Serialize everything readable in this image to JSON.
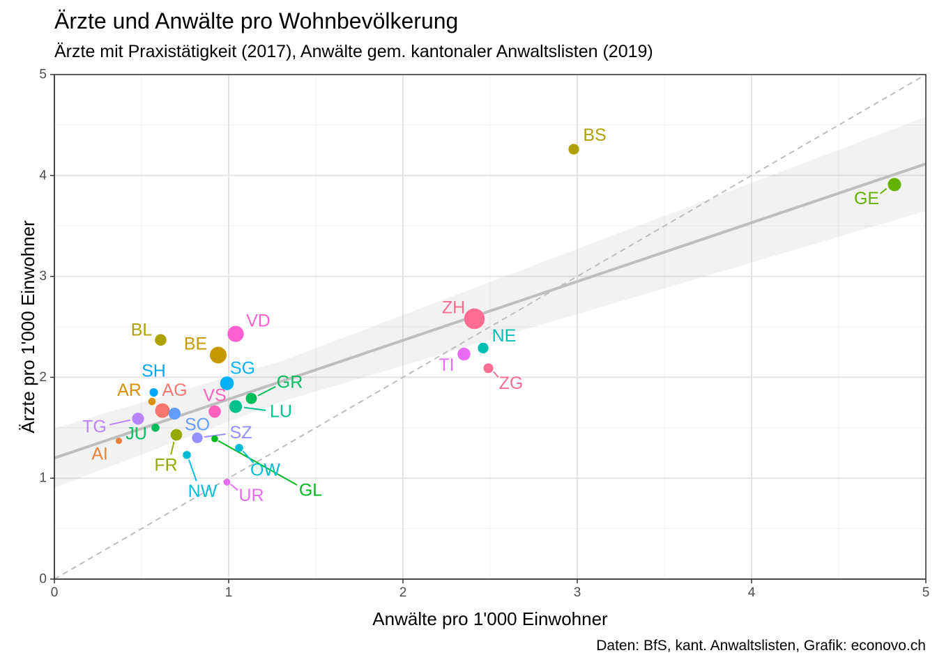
{
  "chart_data": {
    "type": "scatter",
    "title": "Ärzte und Anwälte pro Wohnbevölkerung",
    "subtitle": "Ärzte mit Praxistätigkeit (2017), Anwälte gem. kantonaler Anwaltslisten (2019)",
    "xlabel": "Anwälte pro 1'000 Einwohner",
    "ylabel": "Ärzte pro 1'000 Einwohner",
    "caption": "Daten: BfS, kant. Anwaltslisten, Grafik: econovo.ch",
    "xlim": [
      0,
      5
    ],
    "ylim": [
      0,
      5
    ],
    "x_ticks": [
      "0",
      "1",
      "2",
      "3",
      "4",
      "5"
    ],
    "y_ticks": [
      "0",
      "1",
      "2",
      "3",
      "4",
      "5"
    ],
    "grid": true,
    "reference_line": {
      "style": "dashed",
      "slope": 1,
      "intercept": 0
    },
    "regression": {
      "intercept": 1.2,
      "slope": 0.583,
      "ci_band": true
    },
    "points": [
      {
        "label": "AG",
        "x": 0.62,
        "y": 1.67,
        "size": 4.8,
        "color": "#F8766D",
        "lx": 0.69,
        "ly": 1.87
      },
      {
        "label": "AI",
        "x": 0.37,
        "y": 1.37,
        "size": 1.0,
        "color": "#EC8239",
        "lx": 0.26,
        "ly": 1.24
      },
      {
        "label": "AR",
        "x": 0.56,
        "y": 1.76,
        "size": 1.5,
        "color": "#DB8E00",
        "lx": 0.43,
        "ly": 1.87
      },
      {
        "label": "BE",
        "x": 0.94,
        "y": 2.22,
        "size": 5.8,
        "color": "#C79800",
        "lx": 0.81,
        "ly": 2.33
      },
      {
        "label": "BL",
        "x": 0.61,
        "y": 2.37,
        "size": 3.4,
        "color": "#AFA100",
        "lx": 0.5,
        "ly": 2.47
      },
      {
        "label": "BS",
        "x": 2.98,
        "y": 4.26,
        "size": 3.0,
        "color": "#AFA100",
        "lx": 3.1,
        "ly": 4.4
      },
      {
        "label": "FR",
        "x": 0.7,
        "y": 1.43,
        "size": 3.4,
        "color": "#94AA00",
        "lx": 0.64,
        "ly": 1.13
      },
      {
        "label": "GE",
        "x": 4.82,
        "y": 3.91,
        "size": 4.2,
        "color": "#64B200",
        "lx": 4.66,
        "ly": 3.77
      },
      {
        "label": "GL",
        "x": 0.92,
        "y": 1.39,
        "size": 1.2,
        "color": "#00B81F",
        "lx": 1.47,
        "ly": 0.88
      },
      {
        "label": "GR",
        "x": 1.13,
        "y": 1.79,
        "size": 3.2,
        "color": "#00BD5C",
        "lx": 1.35,
        "ly": 1.95
      },
      {
        "label": "JU",
        "x": 0.58,
        "y": 1.5,
        "size": 1.8,
        "color": "#00BD5C",
        "lx": 0.47,
        "ly": 1.44
      },
      {
        "label": "LU",
        "x": 1.04,
        "y": 1.71,
        "size": 4.0,
        "color": "#00C08D",
        "lx": 1.3,
        "ly": 1.66
      },
      {
        "label": "NE",
        "x": 2.46,
        "y": 2.29,
        "size": 3.0,
        "color": "#00BFB2",
        "lx": 2.58,
        "ly": 2.41
      },
      {
        "label": "NW",
        "x": 0.76,
        "y": 1.23,
        "size": 1.8,
        "color": "#00BCD6",
        "lx": 0.85,
        "ly": 0.87
      },
      {
        "label": "OW",
        "x": 1.06,
        "y": 1.3,
        "size": 1.8,
        "color": "#00BCD6",
        "lx": 1.21,
        "ly": 1.08
      },
      {
        "label": "SG",
        "x": 0.99,
        "y": 1.94,
        "size": 4.4,
        "color": "#00B0F6",
        "lx": 1.08,
        "ly": 2.09
      },
      {
        "label": "SH",
        "x": 0.57,
        "y": 1.85,
        "size": 2.0,
        "color": "#00A7FF",
        "lx": 0.57,
        "ly": 2.06
      },
      {
        "label": "SO",
        "x": 0.69,
        "y": 1.64,
        "size": 3.6,
        "color": "#619CFF",
        "lx": 0.82,
        "ly": 1.53
      },
      {
        "label": "SZ",
        "x": 0.82,
        "y": 1.4,
        "size": 3.0,
        "color": "#9590FF",
        "lx": 1.07,
        "ly": 1.45
      },
      {
        "label": "TG",
        "x": 0.48,
        "y": 1.59,
        "size": 3.6,
        "color": "#B983FF",
        "lx": 0.23,
        "ly": 1.51
      },
      {
        "label": "TI",
        "x": 2.35,
        "y": 2.23,
        "size": 4.0,
        "color": "#E76BF3",
        "lx": 2.25,
        "ly": 2.12
      },
      {
        "label": "UR",
        "x": 0.99,
        "y": 0.96,
        "size": 1.2,
        "color": "#E76BF3",
        "lx": 1.13,
        "ly": 0.83
      },
      {
        "label": "VD",
        "x": 1.04,
        "y": 2.43,
        "size": 5.6,
        "color": "#FD61D1",
        "lx": 1.17,
        "ly": 2.56
      },
      {
        "label": "VS",
        "x": 0.92,
        "y": 1.66,
        "size": 3.8,
        "color": "#FF62BC",
        "lx": 0.92,
        "ly": 1.82
      },
      {
        "label": "ZG",
        "x": 2.49,
        "y": 2.09,
        "size": 2.6,
        "color": "#FF6C91",
        "lx": 2.62,
        "ly": 1.94
      },
      {
        "label": "ZH",
        "x": 2.41,
        "y": 2.58,
        "size": 7.6,
        "color": "#FF6C91",
        "lx": 2.29,
        "ly": 2.69
      }
    ]
  }
}
